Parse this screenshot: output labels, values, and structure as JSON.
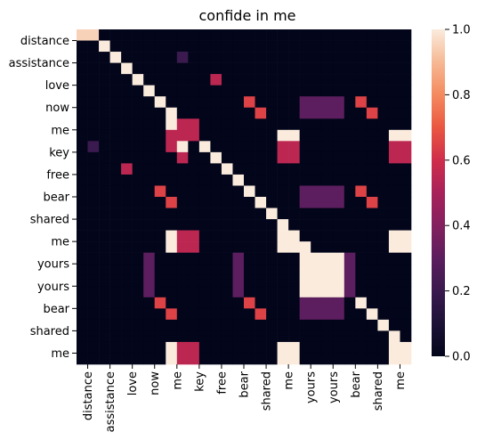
{
  "chart_data": {
    "type": "heatmap",
    "title": "confide in me",
    "x_tick_labels": [
      "distance",
      "assistance",
      "love",
      "now",
      "me",
      "key",
      "free",
      "bear",
      "shared",
      "me",
      "yours",
      "yours",
      "bear",
      "shared",
      "me"
    ],
    "y_tick_labels": [
      "distance",
      "assistance",
      "love",
      "now",
      "me",
      "key",
      "free",
      "bear",
      "shared",
      "me",
      "yours",
      "yours",
      "bear",
      "shared",
      "me"
    ],
    "colorbar": {
      "min": 0.0,
      "max": 1.0,
      "tick_labels": [
        "0.0",
        "0.2",
        "0.4",
        "0.6",
        "0.8",
        "1.0"
      ],
      "colormap": "rocket"
    },
    "values": [
      [
        [
          0,
          0
        ],
        0.95
      ],
      [
        [
          0,
          1
        ],
        0
      ],
      [
        [
          1,
          1
        ],
        1.0
      ],
      [
        [
          1,
          4.5
        ],
        0.2
      ],
      [
        [
          2,
          2
        ],
        1.0
      ],
      [
        [
          2,
          6
        ],
        0.55
      ],
      [
        [
          3,
          3
        ],
        1.0
      ],
      [
        [
          3,
          3.5
        ],
        0.9
      ],
      [
        [
          3,
          4
        ],
        0.65
      ],
      [
        [
          3,
          7.5
        ],
        0.65
      ],
      [
        [
          3,
          8
        ],
        0.65
      ],
      [
        [
          3,
          10
        ],
        0.3
      ],
      [
        [
          3,
          11
        ],
        0.3
      ],
      [
        [
          3,
          12.5
        ],
        0.65
      ],
      [
        [
          3,
          13
        ],
        0.65
      ]
    ],
    "grid": [
      [
        0.95,
        0.0,
        0.0,
        0.0,
        0.0,
        0.0,
        0.0,
        0.0,
        0.0,
        0.0,
        0.0,
        0.0,
        0.0,
        0.0,
        0.0,
        0.0,
        0.0,
        0.0,
        0.0,
        0.0,
        0.0,
        0.0,
        0.0,
        0.0,
        0.0,
        0.0,
        0.0,
        0.0,
        0.0,
        0.0
      ],
      [
        0.0,
        0.0,
        1.0,
        0.0,
        0.0,
        0.0,
        0.0,
        0.0,
        0.0,
        0.0,
        0.0,
        0.0,
        0.0,
        0.0,
        0.0,
        0.0,
        0.0,
        0.0,
        0.0,
        0.0,
        0.0,
        0.0,
        0.0,
        0.0,
        0.0,
        0.0,
        0.0,
        0.0,
        0.0,
        0.0
      ],
      [
        0.0,
        0.0,
        0.0,
        0.0,
        0.0,
        0.0,
        0.0,
        0.0,
        0.0,
        0.0,
        0.0,
        0.0,
        0.0,
        0.0,
        0.0,
        0.0,
        0.0,
        0.0,
        0.0,
        0.0,
        0.0,
        0.0,
        0.0,
        0.0,
        0.0,
        0.0,
        0.0,
        0.0,
        0.0,
        0.0
      ],
      [
        0.0,
        0.0,
        0.0,
        0.0,
        0.0,
        0.0,
        0.0,
        0.0,
        0.0,
        0.0,
        0.0,
        0.0,
        0.0,
        0.0,
        0.0,
        0.0,
        0.0,
        0.0,
        0.0,
        0.0,
        0.0,
        0.0,
        0.0,
        0.0,
        0.0,
        0.0,
        0.0,
        0.0,
        0.0,
        0.0
      ],
      [
        0.0,
        0.0,
        0.0,
        0.0,
        0.0,
        0.0,
        0.0,
        0.0,
        0.0,
        0.0,
        0.0,
        0.0,
        0.0,
        0.0,
        0.0,
        0.0,
        0.0,
        0.0,
        0.0,
        0.0,
        0.0,
        0.0,
        0.0,
        0.0,
        0.0,
        0.0,
        0.0,
        0.0,
        0.0,
        0.0
      ],
      [
        0.0,
        0.0,
        0.0,
        0.0,
        0.0,
        0.0,
        0.0,
        0.0,
        0.0,
        0.0,
        0.0,
        0.0,
        0.0,
        0.0,
        0.0,
        0.0,
        0.0,
        0.0,
        0.0,
        0.0,
        0.0,
        0.0,
        0.0,
        0.0,
        0.0,
        0.0,
        0.0,
        0.0,
        0.0,
        0.0
      ],
      [
        0.0,
        0.0,
        0.0,
        0.0,
        0.0,
        0.0,
        0.0,
        0.0,
        0.0,
        0.0,
        0.0,
        0.0,
        0.0,
        0.0,
        0.0,
        0.0,
        0.0,
        0.0,
        0.0,
        0.0,
        0.0,
        0.0,
        0.0,
        0.0,
        0.0,
        0.0,
        0.0,
        0.0,
        0.0,
        0.0
      ],
      [
        0.0,
        0.0,
        0.0,
        0.0,
        0.0,
        0.0,
        0.0,
        0.0,
        0.0,
        0.0,
        0.0,
        0.0,
        0.0,
        0.0,
        0.0,
        0.0,
        0.0,
        0.0,
        0.0,
        0.0,
        0.0,
        0.0,
        0.0,
        0.0,
        0.0,
        0.0,
        0.0,
        0.0,
        0.0,
        0.0
      ],
      [
        0.0,
        0.0,
        0.0,
        0.0,
        0.0,
        0.0,
        0.0,
        0.0,
        0.0,
        0.0,
        0.0,
        0.0,
        0.0,
        0.0,
        0.0,
        0.0,
        0.0,
        0.0,
        0.0,
        0.0,
        0.0,
        0.0,
        0.0,
        0.0,
        0.0,
        0.0,
        0.0,
        0.0,
        0.0,
        0.0
      ],
      [
        0.0,
        0.0,
        0.0,
        0.0,
        0.0,
        0.0,
        0.0,
        0.0,
        0.0,
        0.0,
        0.0,
        0.0,
        0.0,
        0.0,
        0.0,
        0.0,
        0.0,
        0.0,
        0.0,
        0.0,
        0.0,
        0.0,
        0.0,
        0.0,
        0.0,
        0.0,
        0.0,
        0.0,
        0.0,
        0.0
      ],
      [
        0.0,
        0.0,
        0.0,
        0.0,
        0.0,
        0.0,
        0.0,
        0.0,
        0.0,
        0.0,
        0.0,
        0.0,
        0.0,
        0.0,
        0.0,
        0.0,
        0.0,
        0.0,
        0.0,
        0.0,
        0.0,
        0.0,
        0.0,
        0.0,
        0.0,
        0.0,
        0.0,
        0.0,
        0.0,
        0.0
      ],
      [
        0.0,
        0.0,
        0.0,
        0.0,
        0.0,
        0.0,
        0.0,
        0.0,
        0.0,
        0.0,
        0.0,
        0.0,
        0.0,
        0.0,
        0.0,
        0.0,
        0.0,
        0.0,
        0.0,
        0.0,
        0.0,
        0.0,
        0.0,
        0.0,
        0.0,
        0.0,
        0.0,
        0.0,
        0.0,
        0.0
      ],
      [
        0.0,
        0.0,
        0.0,
        0.0,
        0.0,
        0.0,
        0.0,
        0.0,
        0.0,
        0.0,
        0.0,
        0.0,
        0.0,
        0.0,
        0.0,
        0.0,
        0.0,
        0.0,
        0.0,
        0.0,
        0.0,
        0.0,
        0.0,
        0.0,
        0.0,
        0.0,
        0.0,
        0.0,
        0.0,
        0.0
      ],
      [
        0.0,
        0.0,
        0.0,
        0.0,
        0.0,
        0.0,
        0.0,
        0.0,
        0.0,
        0.0,
        0.0,
        0.0,
        0.0,
        0.0,
        0.0,
        0.0,
        0.0,
        0.0,
        0.0,
        0.0,
        0.0,
        0.0,
        0.0,
        0.0,
        0.0,
        0.0,
        0.0,
        0.0,
        0.0,
        0.0
      ],
      [
        0.0,
        0.0,
        0.0,
        0.0,
        0.0,
        0.0,
        0.0,
        0.0,
        0.0,
        0.0,
        0.0,
        0.0,
        0.0,
        0.0,
        0.0,
        0.0,
        0.0,
        0.0,
        0.0,
        0.0,
        0.0,
        0.0,
        0.0,
        0.0,
        0.0,
        0.0,
        0.0,
        0.0,
        0.0,
        0.0
      ],
      [
        0.0,
        0.0,
        0.0,
        0.0,
        0.0,
        0.0,
        0.0,
        0.0,
        0.0,
        0.0,
        0.0,
        0.0,
        0.0,
        0.0,
        0.0,
        0.0,
        0.0,
        0.0,
        0.0,
        0.0,
        0.0,
        0.0,
        0.0,
        0.0,
        0.0,
        0.0,
        0.0,
        0.0,
        0.0,
        0.0
      ],
      [
        0.0,
        0.0,
        0.0,
        0.0,
        0.0,
        0.0,
        0.0,
        0.0,
        0.0,
        0.0,
        0.0,
        0.0,
        0.0,
        0.0,
        0.0,
        0.0,
        0.0,
        0.0,
        0.0,
        0.0,
        0.0,
        0.0,
        0.0,
        0.0,
        0.0,
        0.0,
        0.0,
        0.0,
        0.0,
        0.0
      ],
      [
        0.0,
        0.0,
        0.0,
        0.0,
        0.0,
        0.0,
        0.0,
        0.0,
        0.0,
        0.0,
        0.0,
        0.0,
        0.0,
        0.0,
        0.0,
        0.0,
        0.0,
        0.0,
        0.0,
        0.0,
        0.0,
        0.0,
        0.0,
        0.0,
        0.0,
        0.0,
        0.0,
        0.0,
        0.0,
        0.0
      ],
      [
        0.0,
        0.0,
        0.0,
        0.0,
        0.0,
        0.0,
        0.0,
        0.0,
        0.0,
        0.0,
        0.0,
        0.0,
        0.0,
        0.0,
        0.0,
        0.0,
        0.0,
        0.0,
        0.0,
        0.0,
        0.0,
        0.0,
        0.0,
        0.0,
        0.0,
        0.0,
        0.0,
        0.0,
        0.0,
        0.0
      ],
      [
        0.0,
        0.0,
        0.0,
        0.0,
        0.0,
        0.0,
        0.0,
        0.0,
        0.0,
        0.0,
        0.0,
        0.0,
        0.0,
        0.0,
        0.0,
        0.0,
        0.0,
        0.0,
        0.0,
        0.0,
        0.0,
        0.0,
        0.0,
        0.0,
        0.0,
        0.0,
        0.0,
        0.0,
        0.0,
        0.0
      ],
      [
        0.0,
        0.0,
        0.0,
        0.0,
        0.0,
        0.0,
        0.0,
        0.0,
        0.0,
        0.0,
        0.0,
        0.0,
        0.0,
        0.0,
        0.0,
        0.0,
        0.0,
        0.0,
        0.0,
        0.0,
        0.0,
        0.0,
        0.0,
        0.0,
        0.0,
        0.0,
        0.0,
        0.0,
        0.0,
        0.0
      ],
      [
        0.0,
        0.0,
        0.0,
        0.0,
        0.0,
        0.0,
        0.0,
        0.0,
        0.0,
        0.0,
        0.0,
        0.0,
        0.0,
        0.0,
        0.0,
        0.0,
        0.0,
        0.0,
        0.0,
        0.0,
        0.0,
        0.0,
        0.0,
        0.0,
        0.0,
        0.0,
        0.0,
        0.0,
        0.0,
        0.0
      ],
      [
        0.0,
        0.0,
        0.0,
        0.0,
        0.0,
        0.0,
        0.0,
        0.0,
        0.0,
        0.0,
        0.0,
        0.0,
        0.0,
        0.0,
        0.0,
        0.0,
        0.0,
        0.0,
        0.0,
        0.0,
        0.0,
        0.0,
        0.0,
        0.0,
        0.0,
        0.0,
        0.0,
        0.0,
        0.0,
        0.0
      ],
      [
        0.0,
        0.0,
        0.0,
        0.0,
        0.0,
        0.0,
        0.0,
        0.0,
        0.0,
        0.0,
        0.0,
        0.0,
        0.0,
        0.0,
        0.0,
        0.0,
        0.0,
        0.0,
        0.0,
        0.0,
        0.0,
        0.0,
        0.0,
        0.0,
        0.0,
        0.0,
        0.0,
        0.0,
        0.0,
        0.0
      ],
      [
        0.0,
        0.0,
        0.0,
        0.0,
        0.0,
        0.0,
        0.0,
        0.0,
        0.0,
        0.0,
        0.0,
        0.0,
        0.0,
        0.0,
        0.0,
        0.0,
        0.0,
        0.0,
        0.0,
        0.0,
        0.0,
        0.0,
        0.0,
        0.0,
        0.0,
        0.0,
        0.0,
        0.0,
        0.0,
        0.0
      ],
      [
        0.0,
        0.0,
        0.0,
        0.0,
        0.0,
        0.0,
        0.0,
        0.0,
        0.0,
        0.0,
        0.0,
        0.0,
        0.0,
        0.0,
        0.0,
        0.0,
        0.0,
        0.0,
        0.0,
        0.0,
        0.0,
        0.0,
        0.0,
        0.0,
        0.0,
        0.0,
        0.0,
        0.0,
        0.0,
        0.0
      ],
      [
        0.0,
        0.0,
        0.0,
        0.0,
        0.0,
        0.0,
        0.0,
        0.0,
        0.0,
        0.0,
        0.0,
        0.0,
        0.0,
        0.0,
        0.0,
        0.0,
        0.0,
        0.0,
        0.0,
        0.0,
        0.0,
        0.0,
        0.0,
        0.0,
        0.0,
        0.0,
        0.0,
        0.0,
        0.0,
        0.0
      ],
      [
        0.0,
        0.0,
        0.0,
        0.0,
        0.0,
        0.0,
        0.0,
        0.0,
        0.0,
        0.0,
        0.0,
        0.0,
        0.0,
        0.0,
        0.0,
        0.0,
        0.0,
        0.0,
        0.0,
        0.0,
        0.0,
        0.0,
        0.0,
        0.0,
        0.0,
        0.0,
        0.0,
        0.0,
        0.0,
        0.0
      ],
      [
        0.0,
        0.0,
        0.0,
        0.0,
        0.0,
        0.0,
        0.0,
        0.0,
        0.0,
        0.0,
        0.0,
        0.0,
        0.0,
        0.0,
        0.0,
        0.0,
        0.0,
        0.0,
        0.0,
        0.0,
        0.0,
        0.0,
        0.0,
        0.0,
        0.0,
        0.0,
        0.0,
        0.0,
        0.0,
        0.0
      ],
      [
        0.0,
        0.0,
        0.0,
        0.0,
        0.0,
        0.0,
        0.0,
        0.0,
        0.0,
        0.0,
        0.0,
        0.0,
        0.0,
        0.0,
        0.0,
        0.0,
        0.0,
        0.0,
        0.0,
        0.0,
        0.0,
        0.0,
        0.0,
        0.0,
        0.0,
        0.0,
        0.0,
        0.0,
        0.0,
        0.0
      ]
    ]
  }
}
